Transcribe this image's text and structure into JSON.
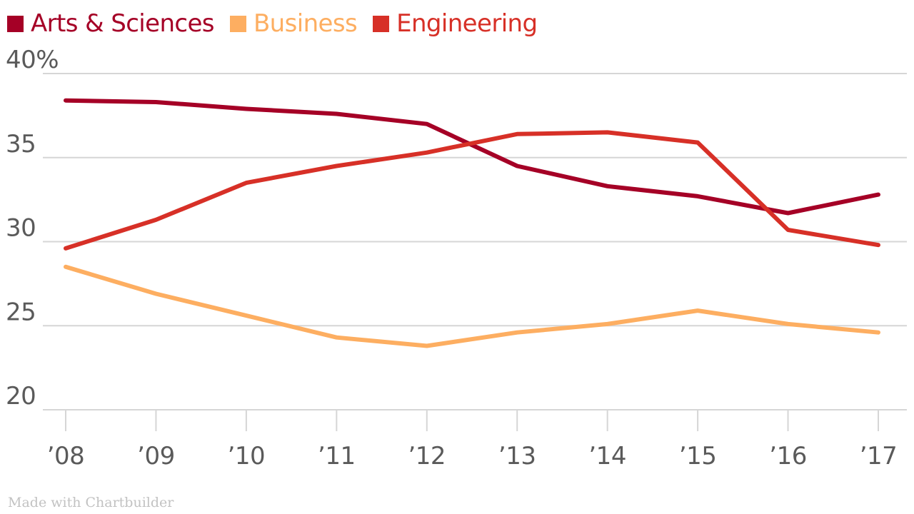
{
  "chart_data": {
    "type": "line",
    "title": "",
    "xlabel": "",
    "ylabel": "",
    "x": [
      "’08",
      "’09",
      "’10",
      "’11",
      "’12",
      "’13",
      "’14",
      "’15",
      "’16",
      "’17"
    ],
    "y_ticks": [
      {
        "value": 40,
        "label": "40%"
      },
      {
        "value": 35,
        "label": "35"
      },
      {
        "value": 30,
        "label": "30"
      },
      {
        "value": 25,
        "label": "25"
      },
      {
        "value": 20,
        "label": "20"
      }
    ],
    "ylim": [
      20,
      40
    ],
    "grid": true,
    "legend_position": "top-left",
    "series": [
      {
        "name": "Arts & Sciences",
        "color": "#a50026",
        "values": [
          38.4,
          38.3,
          37.9,
          37.6,
          37.0,
          34.5,
          33.3,
          32.7,
          31.7,
          32.8
        ]
      },
      {
        "name": "Business",
        "color": "#fdae61",
        "values": [
          28.5,
          26.9,
          25.6,
          24.3,
          23.8,
          24.6,
          25.1,
          25.9,
          25.1,
          24.6
        ]
      },
      {
        "name": "Engineering",
        "color": "#d73027",
        "values": [
          29.6,
          31.3,
          33.5,
          34.5,
          35.3,
          36.4,
          36.5,
          35.9,
          30.7,
          29.8
        ]
      }
    ]
  },
  "credit": "Made with Chartbuilder"
}
